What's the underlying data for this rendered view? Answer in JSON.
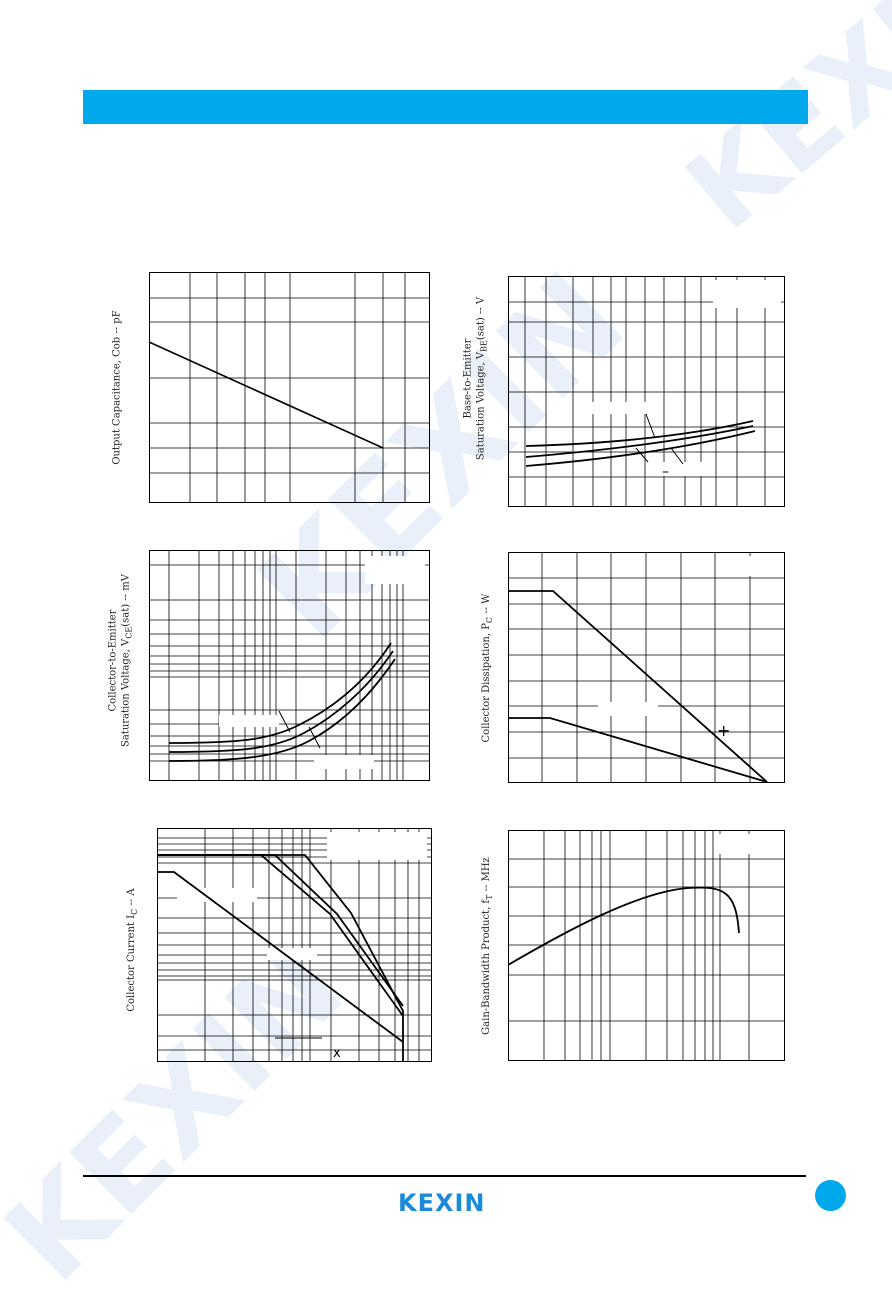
{
  "colors": {
    "accent": "#00a8ec",
    "brand": "#1a8ad9",
    "watermark": "#e9f0f9",
    "ink": "#000000"
  },
  "watermark": {
    "text": "KEXIN"
  },
  "header": {
    "bar_color": "#00a8ec"
  },
  "charts": {
    "cob": {
      "ylabel_unit": "Output Capacitance, Cob  --  pF"
    },
    "vbe": {
      "ylabel_line1": "Base-to-Emitter",
      "ylabel_line2": "Saturation Voltage, V",
      "ylabel_sub": "BE",
      "ylabel_unit": "(sat)  --  V"
    },
    "vce": {
      "ylabel_line1": "Collector-to-Emitter",
      "ylabel_line2": "Saturation Voltage, V",
      "ylabel_sub": "CE",
      "ylabel_unit": "(sat)  --  mV"
    },
    "pc": {
      "ylabel_prefix": "Collector Dissipation, P",
      "ylabel_sub": "C",
      "ylabel_unit": "  --  W"
    },
    "ic": {
      "ylabel_prefix": "Collector Current  I",
      "ylabel_sub": "C",
      "ylabel_unit": "  --  A"
    },
    "ft": {
      "ylabel_prefix": "Gain-Bandwidth Product, f",
      "ylabel_sub": "T",
      "ylabel_unit": "  --  MHz"
    }
  },
  "markers": {
    "plus": "+",
    "cross": "x",
    "dash": "–"
  },
  "footer": {
    "brand": "KEXIN"
  }
}
